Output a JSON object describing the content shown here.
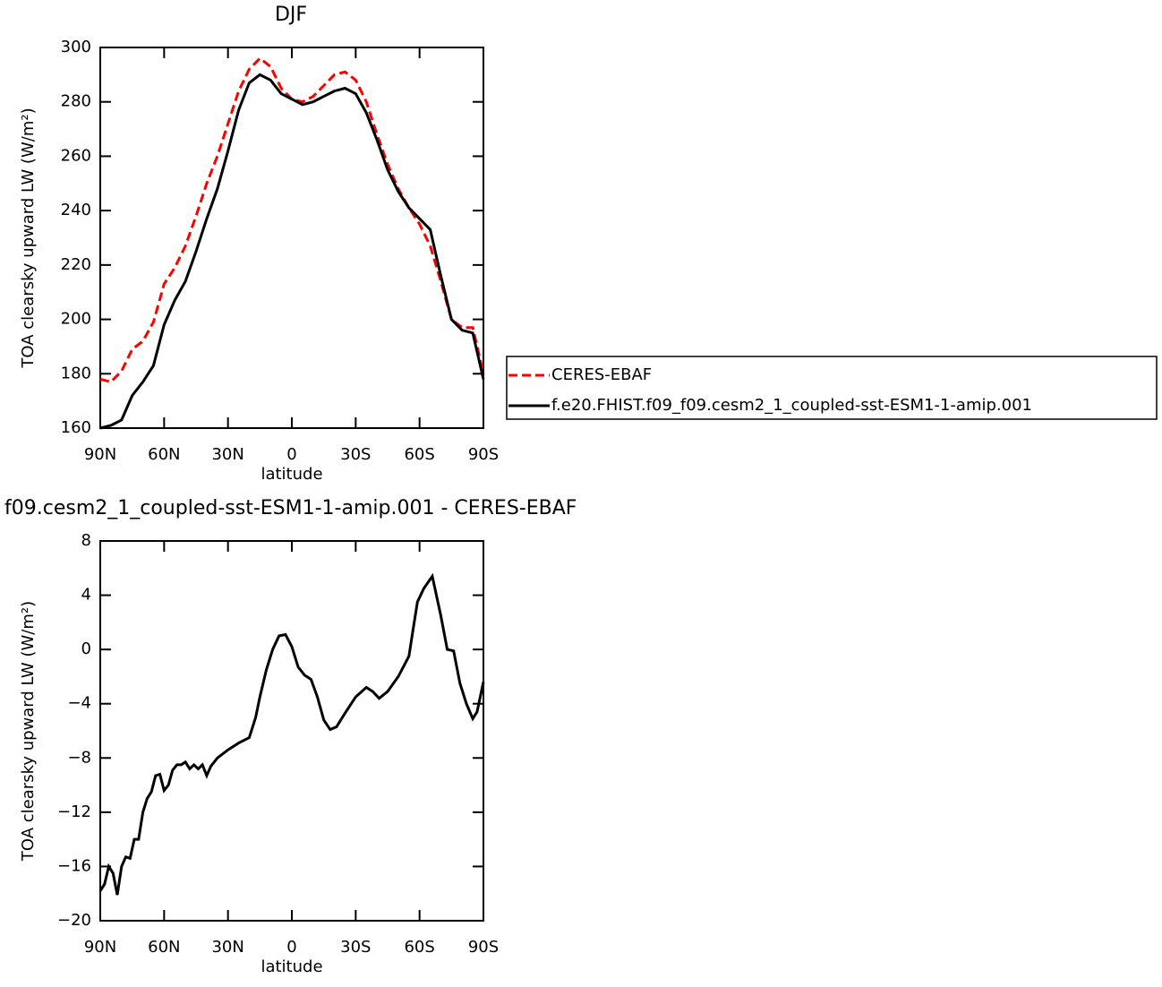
{
  "chart_data": [
    {
      "type": "line",
      "title": "DJF",
      "xlabel": "latitude",
      "ylabel": "TOA clearsky upward LW (W/m²)",
      "x": [
        90,
        85,
        80,
        75,
        70,
        65,
        60,
        55,
        50,
        45,
        40,
        35,
        30,
        25,
        20,
        15,
        10,
        5,
        0,
        -5,
        -10,
        -15,
        -20,
        -25,
        -30,
        -35,
        -40,
        -45,
        -50,
        -55,
        -60,
        -65,
        -70,
        -75,
        -80,
        -85,
        -90
      ],
      "series": [
        {
          "name": "CERES-EBAF",
          "color": "#ff0000",
          "dash": true,
          "values": [
            178,
            177,
            181,
            189,
            192,
            199,
            213,
            219,
            227,
            238,
            250,
            260,
            272,
            284,
            292,
            296,
            293,
            285,
            281,
            280,
            282,
            286,
            290,
            291,
            288,
            280,
            268,
            257,
            248,
            241,
            235,
            227,
            214,
            200,
            197,
            197,
            180
          ]
        },
        {
          "name": "f.e20.FHIST.f09_f09.cesm2_1_coupled-sst-ESM1-1-amip.001",
          "color": "#000000",
          "dash": false,
          "values": [
            160,
            161,
            163,
            172,
            177,
            183,
            198,
            207,
            214,
            225,
            237,
            248,
            262,
            277,
            287,
            290,
            288,
            283,
            281,
            279,
            280,
            282,
            284,
            285,
            283,
            276,
            266,
            255,
            247,
            241,
            237,
            233,
            216,
            200,
            196,
            195,
            178
          ]
        }
      ],
      "xlim": [
        90,
        -90
      ],
      "xticks": [
        {
          "value": 90,
          "label": "90N"
        },
        {
          "value": 60,
          "label": "60N"
        },
        {
          "value": 30,
          "label": "30N"
        },
        0,
        {
          "value": -30,
          "label": "30S"
        },
        {
          "value": -60,
          "label": "60S"
        },
        {
          "value": -90,
          "label": "90S"
        }
      ],
      "ylim": [
        160,
        300
      ],
      "yticks": [
        160,
        180,
        200,
        220,
        240,
        260,
        280,
        300
      ],
      "legend": "outside-right"
    },
    {
      "type": "line",
      "title": "f09.cesm2_1_coupled-sst-ESM1-1-amip.001 - CERES-EBAF",
      "xlabel": "latitude",
      "ylabel": "TOA clearsky upward LW (W/m²)",
      "x": [
        90,
        88,
        86,
        84,
        82,
        80,
        78,
        76,
        74,
        72,
        70,
        68,
        66,
        64,
        62,
        60,
        58,
        56,
        54,
        52,
        50,
        48,
        46,
        44,
        42,
        40,
        38,
        35,
        30,
        25,
        20,
        17,
        15,
        12,
        9,
        6,
        3,
        0,
        -3,
        -6,
        -9,
        -12,
        -15,
        -18,
        -21,
        -25,
        -30,
        -35,
        -38,
        -41,
        -45,
        -50,
        -55,
        -57,
        -59,
        -62,
        -66,
        -70,
        -73,
        -76,
        -79,
        -82,
        -85,
        -87,
        -90
      ],
      "series": [
        {
          "color": "#000000",
          "dash": false,
          "values": [
            -17.8,
            -17.3,
            -16.0,
            -16.5,
            -18.1,
            -16.0,
            -15.3,
            -15.4,
            -14.0,
            -14.0,
            -12.0,
            -11.0,
            -10.5,
            -9.3,
            -9.2,
            -10.4,
            -10.0,
            -8.9,
            -8.5,
            -8.5,
            -8.3,
            -8.8,
            -8.5,
            -8.8,
            -8.5,
            -9.3,
            -8.6,
            -8.0,
            -7.4,
            -6.9,
            -6.5,
            -5.0,
            -3.5,
            -1.5,
            0,
            1.0,
            1.1,
            0.2,
            -1.3,
            -1.9,
            -2.2,
            -3.5,
            -5.2,
            -5.9,
            -5.7,
            -4.7,
            -3.5,
            -2.8,
            -3.1,
            -3.6,
            -3.1,
            -2.0,
            -0.5,
            1.5,
            3.5,
            4.5,
            5.4,
            2.5,
            0.0,
            -0.1,
            -2.5,
            -4.0,
            -5.1,
            -4.6,
            -2.4
          ]
        }
      ],
      "xlim": [
        90,
        -90
      ],
      "xticks": [
        {
          "value": 90,
          "label": "90N"
        },
        {
          "value": 60,
          "label": "60N"
        },
        {
          "value": 30,
          "label": "30N"
        },
        0,
        {
          "value": -30,
          "label": "30S"
        },
        {
          "value": -60,
          "label": "60S"
        },
        {
          "value": -90,
          "label": "90S"
        }
      ],
      "ylim": [
        -20,
        8
      ],
      "yticks": [
        {
          "value": -20,
          "label": "−20"
        },
        {
          "value": -16,
          "label": "−16"
        },
        {
          "value": -12,
          "label": "−12"
        },
        {
          "value": -8,
          "label": "−8"
        },
        {
          "value": -4,
          "label": "−4"
        },
        0,
        4,
        8
      ]
    }
  ]
}
